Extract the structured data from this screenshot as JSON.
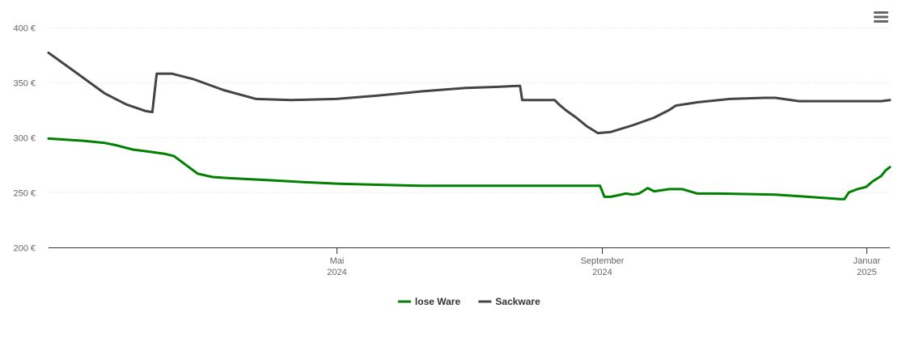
{
  "menu": {
    "icon": "hamburger-menu-icon"
  },
  "chart_data": {
    "type": "line",
    "title": "",
    "xlabel": "",
    "ylabel": "",
    "ylim": [
      200,
      400
    ],
    "yticks": [
      200,
      250,
      300,
      350,
      400
    ],
    "ytick_labels": [
      "200 €",
      "250 €",
      "300 €",
      "350 €",
      "400 €"
    ],
    "xlim": [
      "2023-12-20",
      "2025-01-12"
    ],
    "xticks": [
      {
        "date": "2024-05-01",
        "label": "Mai",
        "year": "2024"
      },
      {
        "date": "2024-09-01",
        "label": "September",
        "year": "2024"
      },
      {
        "date": "2025-01-01",
        "label": "Januar",
        "year": "2025"
      }
    ],
    "grid": true,
    "legend_position": "bottom-center",
    "series": [
      {
        "name": "lose Ware",
        "color": "#008000",
        "points": [
          [
            "2023-12-20",
            299
          ],
          [
            "2024-01-05",
            297
          ],
          [
            "2024-01-15",
            295
          ],
          [
            "2024-01-20",
            293
          ],
          [
            "2024-01-28",
            289
          ],
          [
            "2024-02-05",
            287
          ],
          [
            "2024-02-12",
            285
          ],
          [
            "2024-02-16",
            283
          ],
          [
            "2024-02-27",
            267
          ],
          [
            "2024-03-05",
            264
          ],
          [
            "2024-03-12",
            263
          ],
          [
            "2024-04-01",
            261
          ],
          [
            "2024-04-20",
            259
          ],
          [
            "2024-05-01",
            258
          ],
          [
            "2024-05-20",
            257
          ],
          [
            "2024-06-10",
            256
          ],
          [
            "2024-07-01",
            256
          ],
          [
            "2024-08-01",
            256
          ],
          [
            "2024-08-31",
            256
          ],
          [
            "2024-09-02",
            246
          ],
          [
            "2024-09-05",
            246
          ],
          [
            "2024-09-12",
            249
          ],
          [
            "2024-09-15",
            248
          ],
          [
            "2024-09-18",
            249
          ],
          [
            "2024-09-22",
            254
          ],
          [
            "2024-09-25",
            251
          ],
          [
            "2024-10-02",
            253
          ],
          [
            "2024-10-08",
            253
          ],
          [
            "2024-10-15",
            249
          ],
          [
            "2024-10-25",
            249
          ],
          [
            "2024-11-20",
            248
          ],
          [
            "2024-12-05",
            246
          ],
          [
            "2024-12-20",
            244
          ],
          [
            "2024-12-22",
            244
          ],
          [
            "2024-12-24",
            250
          ],
          [
            "2024-12-28",
            253
          ],
          [
            "2025-01-01",
            255
          ],
          [
            "2025-01-04",
            260
          ],
          [
            "2025-01-08",
            265
          ],
          [
            "2025-01-10",
            270
          ],
          [
            "2025-01-12",
            273
          ]
        ]
      },
      {
        "name": "Sackware",
        "color": "#434348",
        "points": [
          [
            "2023-12-20",
            377
          ],
          [
            "2024-01-01",
            360
          ],
          [
            "2024-01-15",
            340
          ],
          [
            "2024-01-25",
            330
          ],
          [
            "2024-02-03",
            324
          ],
          [
            "2024-02-06",
            323
          ],
          [
            "2024-02-08",
            358
          ],
          [
            "2024-02-15",
            358
          ],
          [
            "2024-02-25",
            353
          ],
          [
            "2024-03-10",
            343
          ],
          [
            "2024-03-25",
            335
          ],
          [
            "2024-04-10",
            334
          ],
          [
            "2024-05-01",
            335
          ],
          [
            "2024-05-20",
            338
          ],
          [
            "2024-06-10",
            342
          ],
          [
            "2024-06-30",
            345
          ],
          [
            "2024-07-15",
            346
          ],
          [
            "2024-07-25",
            347
          ],
          [
            "2024-07-26",
            334
          ],
          [
            "2024-08-10",
            334
          ],
          [
            "2024-08-12",
            330
          ],
          [
            "2024-08-15",
            325
          ],
          [
            "2024-08-20",
            318
          ],
          [
            "2024-08-25",
            310
          ],
          [
            "2024-08-30",
            304
          ],
          [
            "2024-09-05",
            305
          ],
          [
            "2024-09-15",
            311
          ],
          [
            "2024-09-25",
            318
          ],
          [
            "2024-10-02",
            325
          ],
          [
            "2024-10-05",
            329
          ],
          [
            "2024-10-15",
            332
          ],
          [
            "2024-10-30",
            335
          ],
          [
            "2024-11-15",
            336
          ],
          [
            "2024-11-20",
            336
          ],
          [
            "2024-12-01",
            333
          ],
          [
            "2024-12-15",
            333
          ],
          [
            "2025-01-01",
            333
          ],
          [
            "2025-01-08",
            333
          ],
          [
            "2025-01-12",
            334
          ]
        ]
      }
    ]
  }
}
